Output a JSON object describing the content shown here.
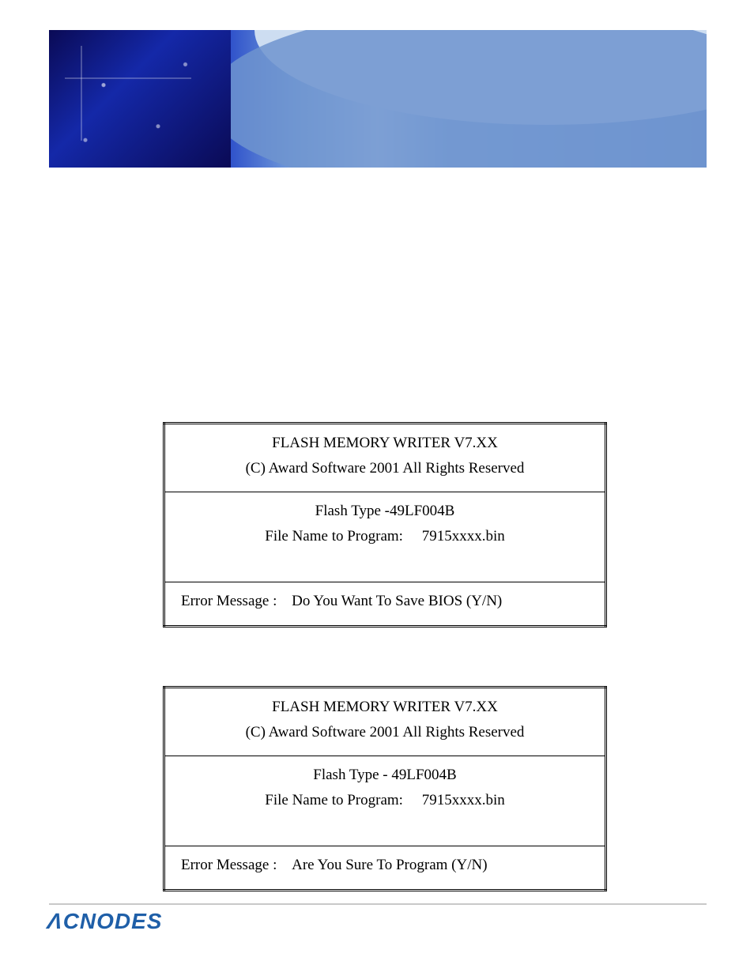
{
  "banner": {
    "gradient_start": "#0b0b5e",
    "gradient_mid": "#2446c8",
    "gradient_light": "#cdddf1",
    "swoosh_color": "#6f94cf"
  },
  "tables": {
    "first": {
      "title": "FLASH MEMORY WRITER V7.XX",
      "copyright": "(C) Award Software 2001 All Rights Reserved",
      "flash_type": "Flash Type -49LF004B",
      "file_label": "File Name to Program:",
      "file_name": "7915xxxx.bin",
      "error_prefix": "Error Message :",
      "error_body": "Do You Want To Save BIOS (Y/N)"
    },
    "second": {
      "title": "FLASH MEMORY WRITER V7.XX",
      "copyright": "(C) Award Software 2001 All Rights Reserved",
      "flash_type": "Flash Type - 49LF004B",
      "file_label": "File Name to Program:",
      "file_name": "7915xxxx.bin",
      "error_prefix": "Error Message :",
      "error_body": "Are You Sure To Program (Y/N)"
    }
  },
  "brand": {
    "text": "CNODES",
    "lambda": "Λ",
    "color": "#1f5fa8"
  }
}
